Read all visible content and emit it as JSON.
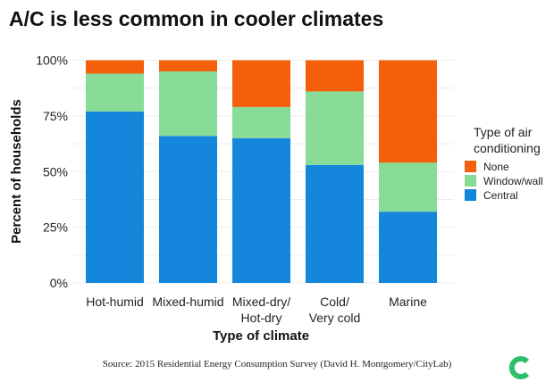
{
  "chart_data": {
    "type": "bar",
    "stacked": true,
    "title": "A/C is less common in cooler climates",
    "xlabel": "Type of climate",
    "ylabel": "Percent of households",
    "ylim": [
      0,
      100
    ],
    "yticks": [
      "0%",
      "25%",
      "50%",
      "75%",
      "100%"
    ],
    "categories": [
      [
        "Hot-humid"
      ],
      [
        "Mixed-humid"
      ],
      [
        "Mixed-dry/",
        "Hot-dry"
      ],
      [
        "Cold/",
        "Very cold"
      ],
      [
        "Marine"
      ]
    ],
    "series": [
      {
        "name": "Central",
        "color": "#1487dc",
        "values": [
          77,
          66,
          65,
          53,
          32
        ]
      },
      {
        "name": "Window/wall",
        "color": "#88dc97",
        "values": [
          17,
          29,
          14,
          33,
          22
        ]
      },
      {
        "name": "None",
        "color": "#f45f0b",
        "values": [
          6,
          5,
          21,
          14,
          46
        ]
      }
    ],
    "legend": {
      "title": [
        "Type of air",
        "conditioning"
      ],
      "placement": "right",
      "order": [
        "None",
        "Window/wall",
        "Central"
      ]
    },
    "grid": true
  },
  "source": "Source: 2015 Residential Energy Consumption Survey (David H. Montgomery/CityLab)",
  "logo_color": "#2dbf6b"
}
